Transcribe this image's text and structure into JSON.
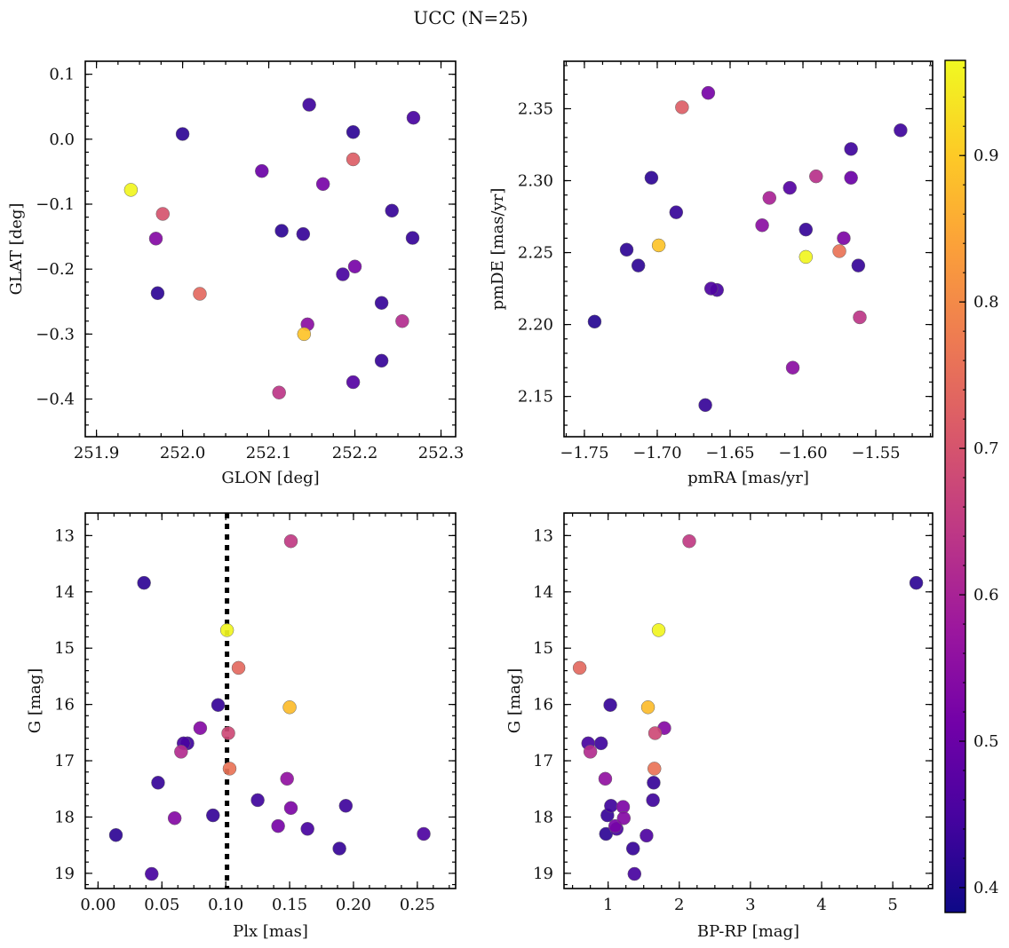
{
  "figure_title": "UCC (N=25)",
  "colormap": "plasma",
  "colorbar": {
    "range": [
      0.383,
      0.965
    ],
    "ticks": [
      0.4,
      0.5,
      0.6,
      0.7,
      0.8,
      0.9
    ],
    "tick_labels": [
      "0.4",
      "0.5",
      "0.6",
      "0.7",
      "0.8",
      "0.9"
    ]
  },
  "colors": {
    "plasma": [
      "#0d0887",
      "#46039f",
      "#7201a8",
      "#9c179e",
      "#bd3786",
      "#d8576b",
      "#ed7953",
      "#fb9f3a",
      "#fdca26",
      "#f0f921"
    ],
    "vline": "#000000",
    "marker_edge": "#666666"
  },
  "chart_data": [
    {
      "type": "scatter",
      "title": "",
      "xlabel": "GLON [deg]",
      "ylabel": "GLAT [deg]",
      "xlim": [
        251.887,
        252.317
      ],
      "ylim": [
        -0.458,
        0.12
      ],
      "xticks": [
        251.9,
        252.0,
        252.1,
        252.2,
        252.3
      ],
      "xtick_labels": [
        "251.9",
        "252.0",
        "252.1",
        "252.2",
        "252.3"
      ],
      "yticks": [
        0.1,
        0.0,
        -0.1,
        -0.2,
        -0.3,
        -0.4
      ],
      "ytick_labels": [
        "0.1",
        "0.0",
        "−0.1",
        "−0.2",
        "−0.3",
        "−0.4"
      ],
      "x": [
        251.94,
        251.977,
        251.969,
        251.971,
        252.02,
        252.0,
        252.092,
        252.147,
        252.163,
        252.198,
        252.198,
        252.268,
        252.243,
        252.115,
        252.14,
        252.2,
        252.186,
        252.267,
        252.231,
        252.145,
        252.141,
        252.231,
        252.255,
        252.112,
        252.198
      ],
      "y": [
        -0.078,
        -0.115,
        -0.153,
        -0.237,
        -0.238,
        0.008,
        -0.049,
        0.053,
        -0.069,
        0.011,
        -0.031,
        0.033,
        -0.11,
        -0.141,
        -0.146,
        -0.196,
        -0.208,
        -0.152,
        -0.252,
        -0.285,
        -0.3,
        -0.341,
        -0.28,
        -0.39,
        -0.374
      ],
      "c": [
        0.96,
        0.7,
        0.54,
        0.42,
        0.74,
        0.42,
        0.5,
        0.44,
        0.52,
        0.42,
        0.72,
        0.45,
        0.43,
        0.42,
        0.43,
        0.52,
        0.45,
        0.43,
        0.43,
        0.55,
        0.89,
        0.43,
        0.62,
        0.64,
        0.47
      ]
    },
    {
      "type": "scatter",
      "title": "",
      "xlabel": "pmRA [mas/yr]",
      "ylabel": "pmDE [mas/yr]",
      "xlim": [
        -1.764,
        -1.511
      ],
      "ylim": [
        2.122,
        2.383
      ],
      "xticks": [
        -1.75,
        -1.7,
        -1.65,
        -1.6,
        -1.55
      ],
      "xtick_labels": [
        "−1.75",
        "−1.70",
        "−1.65",
        "−1.60",
        "−1.55"
      ],
      "yticks": [
        2.35,
        2.3,
        2.25,
        2.2,
        2.15
      ],
      "ytick_labels": [
        "2.35",
        "2.30",
        "2.25",
        "2.20",
        "2.15"
      ],
      "x": [
        -1.683,
        -1.665,
        -1.533,
        -1.567,
        -1.704,
        -1.591,
        -1.567,
        -1.609,
        -1.623,
        -1.687,
        -1.628,
        -1.598,
        -1.721,
        -1.699,
        -1.572,
        -1.575,
        -1.598,
        -1.713,
        -1.562,
        -1.663,
        -1.659,
        -1.561,
        -1.743,
        -1.607,
        -1.667
      ],
      "y": [
        2.351,
        2.361,
        2.335,
        2.322,
        2.302,
        2.303,
        2.302,
        2.295,
        2.288,
        2.278,
        2.269,
        2.266,
        2.252,
        2.255,
        2.26,
        2.251,
        2.247,
        2.241,
        2.241,
        2.225,
        2.224,
        2.205,
        2.202,
        2.17,
        2.144
      ],
      "c": [
        0.72,
        0.52,
        0.44,
        0.44,
        0.42,
        0.63,
        0.5,
        0.47,
        0.6,
        0.43,
        0.55,
        0.43,
        0.42,
        0.89,
        0.53,
        0.76,
        0.96,
        0.42,
        0.43,
        0.46,
        0.45,
        0.64,
        0.41,
        0.55,
        0.43
      ]
    },
    {
      "type": "scatter",
      "title": "",
      "xlabel": "Plx [mas]",
      "ylabel": "G [mag]",
      "xlim": [
        -0.01,
        0.28
      ],
      "ylim": [
        19.27,
        12.6
      ],
      "y_inverted": true,
      "vline_x": 0.101,
      "xticks": [
        0.0,
        0.05,
        0.1,
        0.15,
        0.2,
        0.25
      ],
      "xtick_labels": [
        "0.00",
        "0.05",
        "0.10",
        "0.15",
        "0.20",
        "0.25"
      ],
      "yticks": [
        13,
        14,
        15,
        16,
        17,
        18,
        19
      ],
      "ytick_labels": [
        "13",
        "14",
        "15",
        "16",
        "17",
        "18",
        "19"
      ],
      "x": [
        0.151,
        0.036,
        0.101,
        0.11,
        0.094,
        0.15,
        0.08,
        0.102,
        0.067,
        0.07,
        0.065,
        0.103,
        0.148,
        0.047,
        0.125,
        0.194,
        0.151,
        0.06,
        0.09,
        0.141,
        0.164,
        0.014,
        0.255,
        0.189,
        0.042
      ],
      "y": [
        13.1,
        13.84,
        14.68,
        15.35,
        16.01,
        16.05,
        16.42,
        16.51,
        16.69,
        16.69,
        16.84,
        17.14,
        17.32,
        17.39,
        17.7,
        17.8,
        17.84,
        18.02,
        17.97,
        18.16,
        18.21,
        18.32,
        18.3,
        18.56,
        19.01
      ],
      "c": [
        0.65,
        0.42,
        0.96,
        0.74,
        0.43,
        0.88,
        0.54,
        0.68,
        0.45,
        0.44,
        0.62,
        0.76,
        0.56,
        0.43,
        0.44,
        0.44,
        0.53,
        0.54,
        0.43,
        0.52,
        0.45,
        0.42,
        0.46,
        0.43,
        0.45
      ]
    },
    {
      "type": "scatter",
      "title": "",
      "xlabel": "BP-RP [mag]",
      "ylabel": "G [mag]",
      "xlim": [
        0.38,
        5.56
      ],
      "ylim": [
        19.27,
        12.6
      ],
      "y_inverted": true,
      "xticks": [
        1,
        2,
        3,
        4,
        5
      ],
      "xtick_labels": [
        "1",
        "2",
        "3",
        "4",
        "5"
      ],
      "yticks": [
        13,
        14,
        15,
        16,
        17,
        18,
        19
      ],
      "ytick_labels": [
        "13",
        "14",
        "15",
        "16",
        "17",
        "18",
        "19"
      ],
      "x": [
        2.14,
        5.33,
        1.71,
        0.6,
        1.03,
        1.56,
        1.79,
        1.66,
        0.72,
        0.9,
        0.75,
        1.65,
        0.96,
        1.64,
        1.63,
        1.04,
        1.21,
        1.22,
        0.99,
        1.1,
        1.12,
        0.97,
        1.54,
        1.35,
        1.37
      ],
      "y": [
        13.1,
        13.84,
        14.68,
        15.35,
        16.01,
        16.05,
        16.42,
        16.51,
        16.69,
        16.69,
        16.84,
        17.14,
        17.32,
        17.39,
        17.7,
        17.8,
        17.82,
        18.02,
        17.97,
        18.16,
        18.21,
        18.3,
        18.33,
        18.56,
        19.01
      ],
      "c": [
        0.65,
        0.42,
        0.96,
        0.74,
        0.43,
        0.88,
        0.54,
        0.68,
        0.45,
        0.44,
        0.62,
        0.76,
        0.56,
        0.43,
        0.44,
        0.44,
        0.53,
        0.54,
        0.43,
        0.52,
        0.45,
        0.42,
        0.46,
        0.43,
        0.45
      ]
    }
  ]
}
